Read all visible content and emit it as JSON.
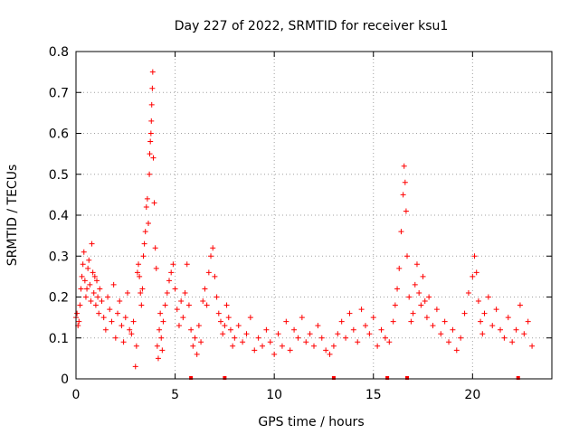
{
  "chart_data": {
    "type": "scatter",
    "title": "Day 227 of 2022, SRMTID for receiver ksu1",
    "xlabel": "GPS time / hours",
    "ylabel": "SRMTID / TECUs",
    "xlim": [
      0,
      24
    ],
    "ylim": [
      0,
      0.8
    ],
    "grid": true,
    "marker": "+",
    "colors": {
      "points": "#ff0000",
      "grid": "#a0a0a0",
      "axis": "#000000"
    },
    "x_ticks": [
      {
        "value": 0,
        "label": "0"
      },
      {
        "value": 5,
        "label": "5"
      },
      {
        "value": 10,
        "label": "10"
      },
      {
        "value": 15,
        "label": "15"
      },
      {
        "value": 20,
        "label": "20"
      }
    ],
    "y_ticks": [
      {
        "value": 0,
        "label": "0"
      },
      {
        "value": 0.1,
        "label": "0.1"
      },
      {
        "value": 0.2,
        "label": "0.2"
      },
      {
        "value": 0.3,
        "label": "0.3"
      },
      {
        "value": 0.4,
        "label": "0.4"
      },
      {
        "value": 0.5,
        "label": "0.5"
      },
      {
        "value": 0.6,
        "label": "0.6"
      },
      {
        "value": 0.7,
        "label": "0.7"
      },
      {
        "value": 0.8,
        "label": "0.8"
      }
    ],
    "series": [
      {
        "name": "SRMTID",
        "points": [
          [
            0.0,
            0.15
          ],
          [
            0.05,
            0.16
          ],
          [
            0.1,
            0.13
          ],
          [
            0.15,
            0.14
          ],
          [
            0.2,
            0.18
          ],
          [
            0.25,
            0.22
          ],
          [
            0.3,
            0.25
          ],
          [
            0.35,
            0.28
          ],
          [
            0.4,
            0.31
          ],
          [
            0.45,
            0.24
          ],
          [
            0.5,
            0.2
          ],
          [
            0.55,
            0.22
          ],
          [
            0.6,
            0.27
          ],
          [
            0.65,
            0.29
          ],
          [
            0.7,
            0.23
          ],
          [
            0.75,
            0.19
          ],
          [
            0.8,
            0.33
          ],
          [
            0.85,
            0.26
          ],
          [
            0.9,
            0.21
          ],
          [
            0.95,
            0.25
          ],
          [
            1.0,
            0.18
          ],
          [
            1.05,
            0.24
          ],
          [
            1.1,
            0.2
          ],
          [
            1.15,
            0.16
          ],
          [
            1.2,
            0.22
          ],
          [
            1.3,
            0.19
          ],
          [
            1.4,
            0.15
          ],
          [
            1.5,
            0.12
          ],
          [
            1.6,
            0.2
          ],
          [
            1.7,
            0.17
          ],
          [
            1.8,
            0.14
          ],
          [
            1.9,
            0.23
          ],
          [
            2.0,
            0.1
          ],
          [
            2.1,
            0.16
          ],
          [
            2.2,
            0.19
          ],
          [
            2.3,
            0.13
          ],
          [
            2.4,
            0.09
          ],
          [
            2.5,
            0.15
          ],
          [
            2.6,
            0.21
          ],
          [
            2.7,
            0.12
          ],
          [
            2.8,
            0.11
          ],
          [
            2.9,
            0.14
          ],
          [
            3.0,
            0.03
          ],
          [
            3.05,
            0.08
          ],
          [
            3.1,
            0.26
          ],
          [
            3.15,
            0.28
          ],
          [
            3.2,
            0.25
          ],
          [
            3.25,
            0.21
          ],
          [
            3.3,
            0.18
          ],
          [
            3.35,
            0.22
          ],
          [
            3.4,
            0.3
          ],
          [
            3.45,
            0.33
          ],
          [
            3.5,
            0.36
          ],
          [
            3.55,
            0.42
          ],
          [
            3.6,
            0.44
          ],
          [
            3.65,
            0.38
          ],
          [
            3.7,
            0.5
          ],
          [
            3.72,
            0.55
          ],
          [
            3.75,
            0.58
          ],
          [
            3.78,
            0.6
          ],
          [
            3.8,
            0.63
          ],
          [
            3.82,
            0.67
          ],
          [
            3.85,
            0.71
          ],
          [
            3.87,
            0.75
          ],
          [
            3.9,
            0.54
          ],
          [
            3.95,
            0.43
          ],
          [
            4.0,
            0.32
          ],
          [
            4.05,
            0.27
          ],
          [
            4.1,
            0.08
          ],
          [
            4.15,
            0.05
          ],
          [
            4.2,
            0.12
          ],
          [
            4.25,
            0.16
          ],
          [
            4.3,
            0.1
          ],
          [
            4.35,
            0.07
          ],
          [
            4.4,
            0.14
          ],
          [
            4.5,
            0.18
          ],
          [
            4.6,
            0.21
          ],
          [
            4.7,
            0.24
          ],
          [
            4.8,
            0.26
          ],
          [
            4.9,
            0.28
          ],
          [
            5.0,
            0.22
          ],
          [
            5.1,
            0.17
          ],
          [
            5.2,
            0.13
          ],
          [
            5.3,
            0.19
          ],
          [
            5.4,
            0.15
          ],
          [
            5.5,
            0.21
          ],
          [
            5.6,
            0.28
          ],
          [
            5.7,
            0.18
          ],
          [
            5.8,
            0.12
          ],
          [
            5.9,
            0.08
          ],
          [
            6.0,
            0.1
          ],
          [
            6.1,
            0.06
          ],
          [
            6.2,
            0.13
          ],
          [
            6.3,
            0.09
          ],
          [
            6.4,
            0.19
          ],
          [
            6.5,
            0.22
          ],
          [
            6.6,
            0.18
          ],
          [
            6.7,
            0.26
          ],
          [
            6.8,
            0.3
          ],
          [
            6.9,
            0.32
          ],
          [
            7.0,
            0.25
          ],
          [
            7.1,
            0.2
          ],
          [
            7.2,
            0.16
          ],
          [
            7.3,
            0.14
          ],
          [
            7.4,
            0.11
          ],
          [
            7.5,
            0.13
          ],
          [
            7.6,
            0.18
          ],
          [
            7.7,
            0.15
          ],
          [
            7.8,
            0.12
          ],
          [
            7.9,
            0.08
          ],
          [
            8.0,
            0.1
          ],
          [
            8.2,
            0.13
          ],
          [
            8.4,
            0.09
          ],
          [
            8.6,
            0.11
          ],
          [
            8.8,
            0.15
          ],
          [
            9.0,
            0.07
          ],
          [
            9.2,
            0.1
          ],
          [
            9.4,
            0.08
          ],
          [
            9.6,
            0.12
          ],
          [
            9.8,
            0.09
          ],
          [
            10.0,
            0.06
          ],
          [
            10.2,
            0.11
          ],
          [
            10.4,
            0.08
          ],
          [
            10.6,
            0.14
          ],
          [
            10.8,
            0.07
          ],
          [
            11.0,
            0.12
          ],
          [
            11.2,
            0.1
          ],
          [
            11.4,
            0.15
          ],
          [
            11.6,
            0.09
          ],
          [
            11.8,
            0.11
          ],
          [
            12.0,
            0.08
          ],
          [
            12.2,
            0.13
          ],
          [
            12.4,
            0.1
          ],
          [
            12.6,
            0.07
          ],
          [
            12.8,
            0.06
          ],
          [
            13.0,
            0.08
          ],
          [
            13.2,
            0.11
          ],
          [
            13.4,
            0.14
          ],
          [
            13.6,
            0.1
          ],
          [
            13.8,
            0.16
          ],
          [
            14.0,
            0.12
          ],
          [
            14.2,
            0.09
          ],
          [
            14.4,
            0.17
          ],
          [
            14.6,
            0.13
          ],
          [
            14.8,
            0.11
          ],
          [
            15.0,
            0.15
          ],
          [
            15.2,
            0.08
          ],
          [
            15.4,
            0.12
          ],
          [
            15.6,
            0.1
          ],
          [
            15.8,
            0.09
          ],
          [
            16.0,
            0.14
          ],
          [
            16.1,
            0.18
          ],
          [
            16.2,
            0.22
          ],
          [
            16.3,
            0.27
          ],
          [
            16.4,
            0.36
          ],
          [
            16.5,
            0.45
          ],
          [
            16.55,
            0.52
          ],
          [
            16.6,
            0.48
          ],
          [
            16.65,
            0.41
          ],
          [
            16.7,
            0.3
          ],
          [
            16.8,
            0.2
          ],
          [
            16.9,
            0.14
          ],
          [
            17.0,
            0.16
          ],
          [
            17.1,
            0.23
          ],
          [
            17.2,
            0.28
          ],
          [
            17.3,
            0.21
          ],
          [
            17.4,
            0.18
          ],
          [
            17.5,
            0.25
          ],
          [
            17.6,
            0.19
          ],
          [
            17.7,
            0.15
          ],
          [
            17.8,
            0.2
          ],
          [
            18.0,
            0.13
          ],
          [
            18.2,
            0.17
          ],
          [
            18.4,
            0.11
          ],
          [
            18.6,
            0.14
          ],
          [
            18.8,
            0.09
          ],
          [
            19.0,
            0.12
          ],
          [
            19.2,
            0.07
          ],
          [
            19.4,
            0.1
          ],
          [
            19.6,
            0.16
          ],
          [
            19.8,
            0.21
          ],
          [
            20.0,
            0.25
          ],
          [
            20.1,
            0.3
          ],
          [
            20.2,
            0.26
          ],
          [
            20.3,
            0.19
          ],
          [
            20.4,
            0.14
          ],
          [
            20.5,
            0.11
          ],
          [
            20.6,
            0.16
          ],
          [
            20.8,
            0.2
          ],
          [
            21.0,
            0.13
          ],
          [
            21.2,
            0.17
          ],
          [
            21.4,
            0.12
          ],
          [
            21.6,
            0.1
          ],
          [
            21.8,
            0.15
          ],
          [
            22.0,
            0.09
          ],
          [
            22.2,
            0.12
          ],
          [
            22.4,
            0.18
          ],
          [
            22.6,
            0.11
          ],
          [
            22.8,
            0.14
          ],
          [
            23.0,
            0.08
          ]
        ]
      }
    ],
    "axis_markers_x": [
      5.8,
      7.5,
      13.0,
      15.7,
      16.7,
      22.3
    ]
  }
}
